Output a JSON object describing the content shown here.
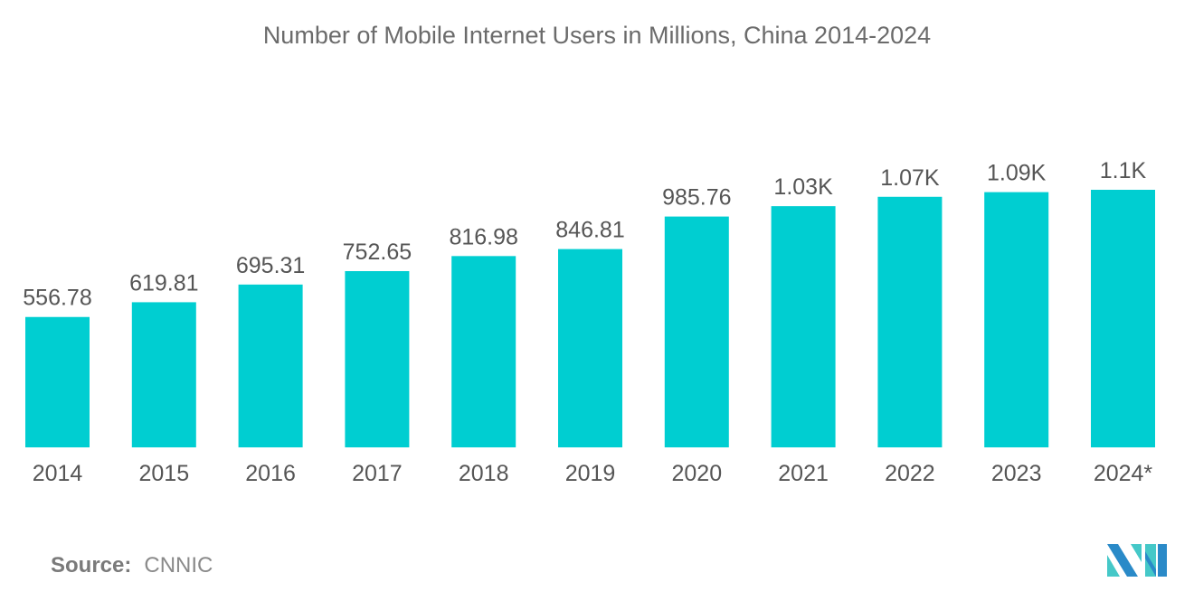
{
  "chart_data": {
    "type": "bar",
    "title": "Number of Mobile Internet Users in Millions, China 2014-2024",
    "categories": [
      "2014",
      "2015",
      "2016",
      "2017",
      "2018",
      "2019",
      "2020",
      "2021",
      "2022",
      "2023",
      "2024*"
    ],
    "values": [
      556.78,
      619.81,
      695.31,
      752.65,
      816.98,
      846.81,
      985.76,
      1030,
      1070,
      1090,
      1100
    ],
    "data_labels": [
      "556.78",
      "619.81",
      "695.31",
      "752.65",
      "816.98",
      "846.81",
      "985.76",
      "1.03K",
      "1.07K",
      "1.09K",
      "1.1K"
    ],
    "xlabel": "",
    "ylabel": "",
    "ylim": [
      0,
      1100
    ],
    "grid": false,
    "bar_color": "#00ced1"
  },
  "source": {
    "label": "Source:",
    "value": "CNNIC"
  },
  "logo": {
    "colors": [
      "#2a8ac8",
      "#45c8c8"
    ]
  }
}
